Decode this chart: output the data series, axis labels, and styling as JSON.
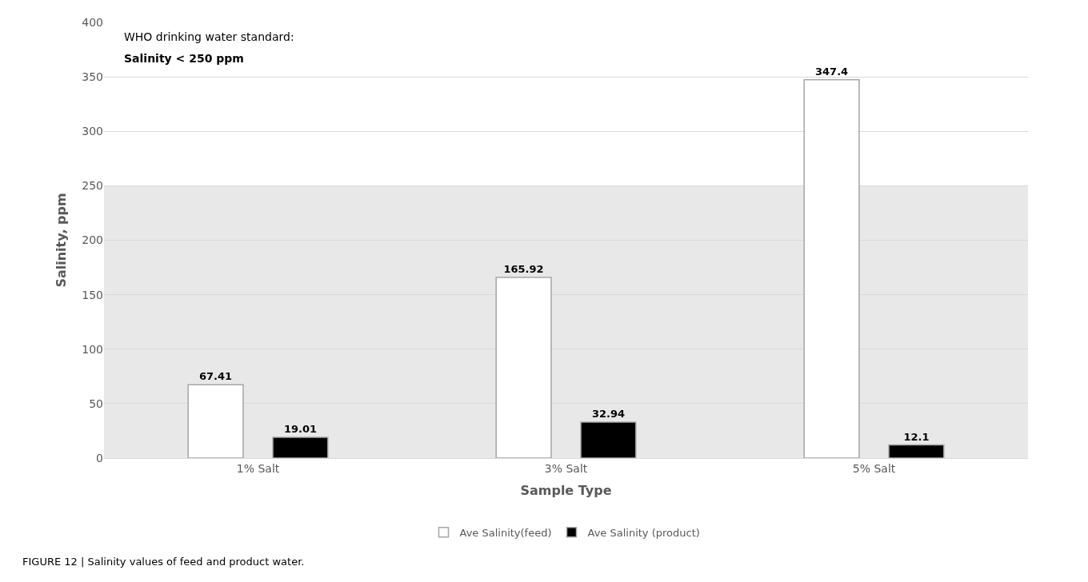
{
  "chart_data": {
    "type": "bar",
    "xlabel": "Sample Type",
    "ylabel": "Salinity, ppm",
    "categories": [
      "1% Salt",
      "3% Salt",
      "5% Salt"
    ],
    "series": [
      {
        "name": "Ave Salinity(feed)",
        "color": "#ffffff",
        "values": [
          67.41,
          165.92,
          347.4
        ]
      },
      {
        "name": "Ave Salinity (product)",
        "color": "#000000",
        "values": [
          19.01,
          32.94,
          12.1
        ]
      }
    ],
    "ylim": [
      0,
      400
    ],
    "yticks": [
      0,
      50,
      100,
      150,
      200,
      250,
      300,
      350,
      400
    ],
    "grid": "y",
    "legend": "bottom",
    "data_labels": true,
    "bands": [
      {
        "axis": "y",
        "from": 0,
        "to": 250,
        "color": "#d9d9d9"
      }
    ],
    "annotations": [
      "WHO drinking water standard:",
      "Salinity < 250 ppm",
      "FIGURE 12 | Salinity values of feed and product water."
    ]
  }
}
